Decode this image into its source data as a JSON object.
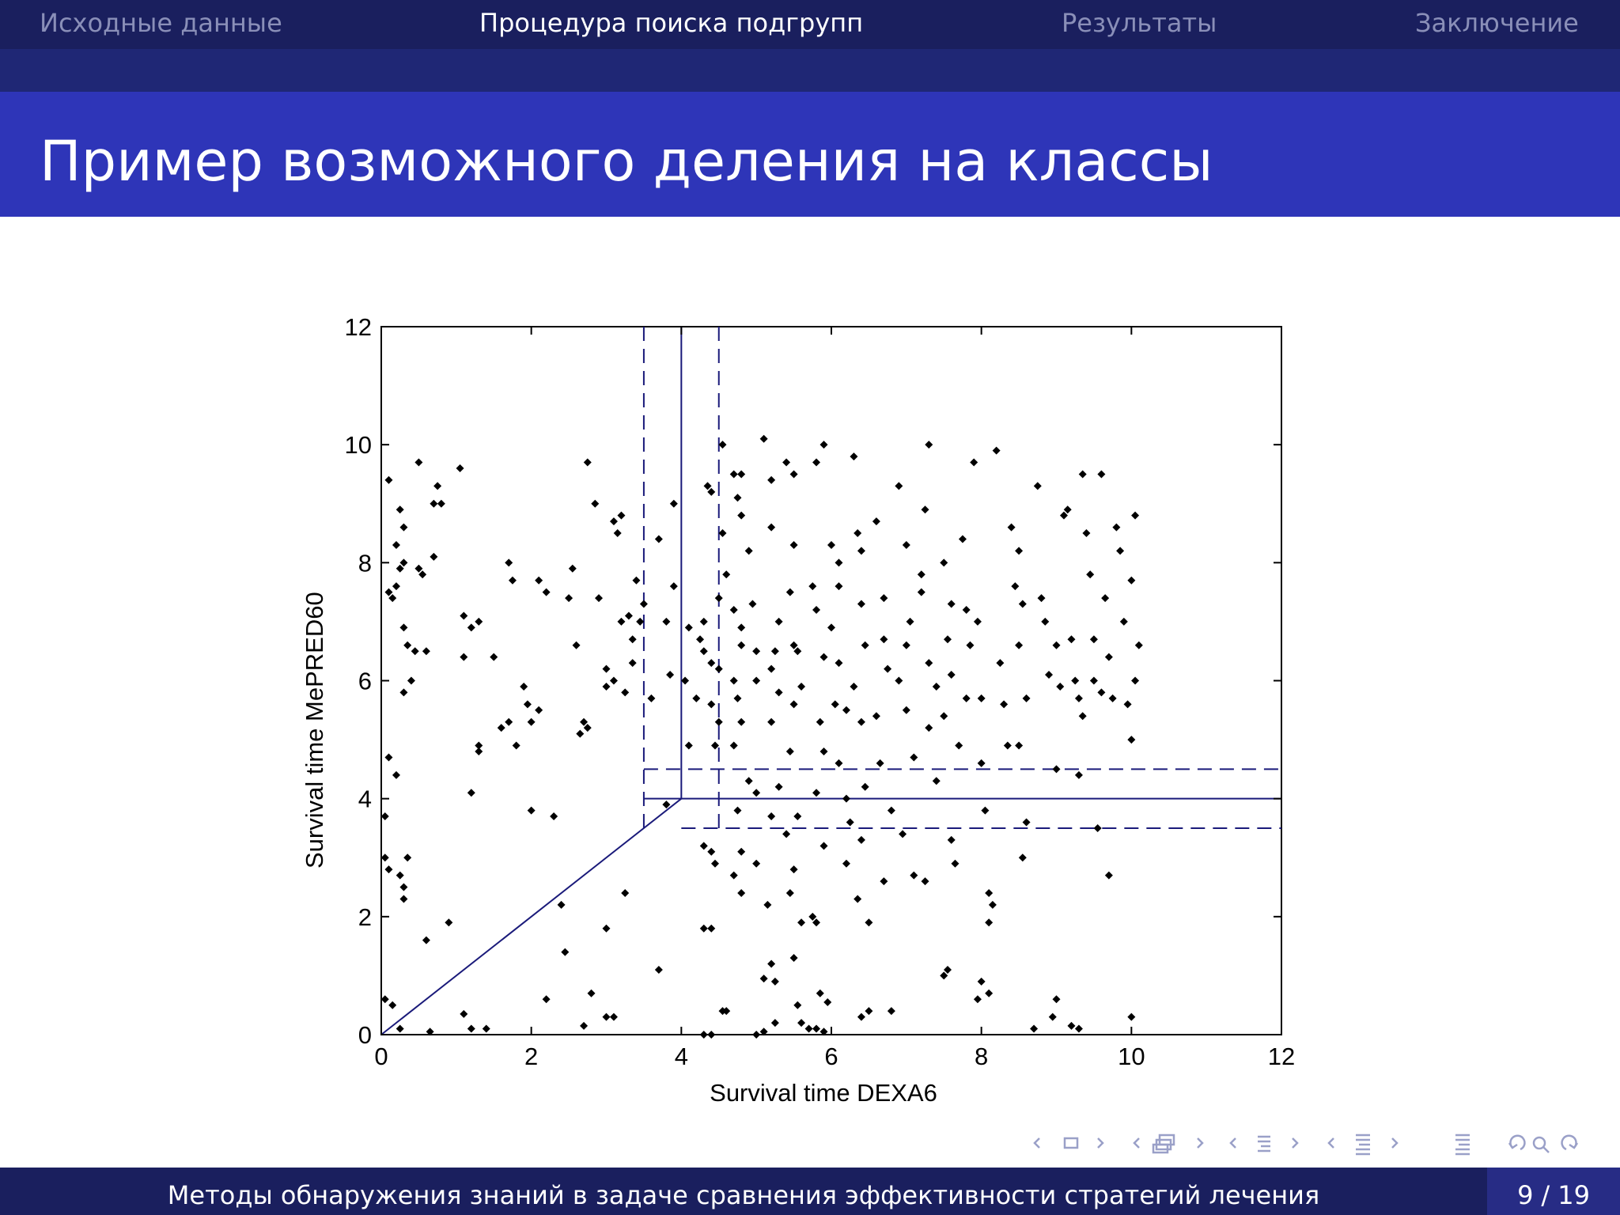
{
  "nav": {
    "items": [
      {
        "label": "Исходные данные"
      },
      {
        "label": "Процедура поиска подгрупп"
      },
      {
        "label": "Результаты"
      },
      {
        "label": "Заключение"
      }
    ],
    "active_index": 1
  },
  "slide": {
    "title": "Пример возможного деления на классы"
  },
  "chart_data": {
    "type": "scatter",
    "xlabel": "Survival time DEXA6",
    "ylabel": "Survival time MePRED60",
    "xlim": [
      0,
      12
    ],
    "ylim": [
      0,
      12
    ],
    "xticks": [
      "0",
      "2",
      "4",
      "6",
      "8",
      "10",
      "12"
    ],
    "yticks": [
      "0",
      "2",
      "4",
      "6",
      "8",
      "10",
      "12"
    ],
    "grid": false,
    "marker_color": "#000000",
    "line_color": "#1a1a7a",
    "reference_lines": [
      {
        "name": "vertical",
        "x": 4,
        "from_y": 4,
        "to_y": 12,
        "style": "solid"
      },
      {
        "name": "vertical-lower-band",
        "x": 3.5,
        "from_y": 3.5,
        "to_y": 12,
        "style": "dashed"
      },
      {
        "name": "vertical-upper-band",
        "x": 4.5,
        "from_y": 3.5,
        "to_y": 12,
        "style": "dashed"
      },
      {
        "name": "horizontal",
        "y": 4,
        "from_x": 4,
        "to_x": 12,
        "style": "solid"
      },
      {
        "name": "horizontal-upper-band",
        "y": 4.5,
        "from_x": 3.5,
        "to_x": 12,
        "style": "dashed"
      },
      {
        "name": "horizontal-lower-band",
        "y": 3.5,
        "from_x": 4,
        "to_x": 12,
        "style": "dashed"
      },
      {
        "name": "horizontal-short",
        "y": 4,
        "from_x": 3.5,
        "to_x": 4,
        "style": "solid"
      },
      {
        "name": "diagonal",
        "from": [
          0,
          0
        ],
        "to": [
          4,
          4
        ],
        "style": "solid"
      }
    ],
    "points": [
      [
        0.1,
        9.4
      ],
      [
        0.2,
        8.3
      ],
      [
        0.1,
        7.5
      ],
      [
        0.2,
        7.6
      ],
      [
        0.15,
        7.4
      ],
      [
        0.25,
        8.9
      ],
      [
        0.3,
        8.6
      ],
      [
        0.3,
        8.0
      ],
      [
        0.25,
        7.9
      ],
      [
        0.3,
        6.9
      ],
      [
        0.35,
        6.6
      ],
      [
        0.4,
        6.0
      ],
      [
        0.3,
        5.8
      ],
      [
        0.45,
        6.5
      ],
      [
        0.5,
        7.9
      ],
      [
        0.55,
        7.8
      ],
      [
        0.6,
        6.5
      ],
      [
        0.7,
        8.1
      ],
      [
        0.7,
        9.0
      ],
      [
        0.8,
        9.0
      ],
      [
        0.75,
        9.3
      ],
      [
        0.5,
        9.7
      ],
      [
        0.1,
        4.7
      ],
      [
        0.2,
        4.4
      ],
      [
        0.05,
        3.7
      ],
      [
        0.05,
        3.0
      ],
      [
        0.1,
        2.8
      ],
      [
        0.25,
        2.7
      ],
      [
        0.3,
        2.5
      ],
      [
        0.3,
        2.3
      ],
      [
        0.35,
        3.0
      ],
      [
        0.05,
        0.6
      ],
      [
        0.15,
        0.5
      ],
      [
        0.25,
        0.1
      ],
      [
        0.6,
        1.6
      ],
      [
        0.9,
        1.9
      ],
      [
        0.65,
        0.05
      ],
      [
        1.05,
        9.6
      ],
      [
        1.1,
        7.1
      ],
      [
        1.2,
        6.9
      ],
      [
        1.3,
        7.0
      ],
      [
        1.1,
        6.4
      ],
      [
        1.3,
        4.9
      ],
      [
        1.3,
        4.8
      ],
      [
        1.2,
        4.1
      ],
      [
        1.5,
        6.4
      ],
      [
        1.7,
        5.3
      ],
      [
        1.6,
        5.2
      ],
      [
        1.8,
        4.9
      ],
      [
        1.75,
        7.7
      ],
      [
        1.7,
        8.0
      ],
      [
        1.9,
        5.9
      ],
      [
        1.95,
        5.6
      ],
      [
        2.1,
        5.5
      ],
      [
        2.0,
        5.3
      ],
      [
        2.0,
        3.8
      ],
      [
        2.1,
        7.7
      ],
      [
        2.2,
        7.5
      ],
      [
        2.3,
        3.7
      ],
      [
        2.4,
        2.2
      ],
      [
        2.45,
        1.4
      ],
      [
        2.5,
        7.4
      ],
      [
        2.55,
        7.9
      ],
      [
        2.6,
        6.6
      ],
      [
        2.65,
        5.1
      ],
      [
        2.7,
        5.3
      ],
      [
        2.75,
        5.2
      ],
      [
        2.75,
        9.7
      ],
      [
        2.85,
        9.0
      ],
      [
        2.9,
        7.4
      ],
      [
        2.8,
        0.7
      ],
      [
        3.0,
        1.8
      ],
      [
        2.2,
        0.6
      ],
      [
        1.1,
        0.35
      ],
      [
        1.2,
        0.1
      ],
      [
        1.4,
        0.1
      ],
      [
        3.0,
        6.2
      ],
      [
        3.0,
        5.9
      ],
      [
        3.1,
        8.7
      ],
      [
        3.15,
        8.5
      ],
      [
        3.2,
        8.8
      ],
      [
        3.2,
        7.0
      ],
      [
        3.3,
        7.1
      ],
      [
        3.35,
        6.7
      ],
      [
        3.1,
        6.0
      ],
      [
        3.25,
        5.8
      ],
      [
        3.25,
        2.4
      ],
      [
        3.4,
        7.7
      ],
      [
        3.35,
        6.3
      ],
      [
        3.5,
        7.3
      ],
      [
        3.45,
        7.0
      ],
      [
        3.6,
        5.7
      ],
      [
        3.7,
        8.4
      ],
      [
        3.8,
        7.0
      ],
      [
        3.9,
        9.0
      ],
      [
        3.9,
        7.6
      ],
      [
        3.85,
        6.1
      ],
      [
        3.7,
        1.1
      ],
      [
        3.8,
        3.9
      ],
      [
        3.0,
        0.3
      ],
      [
        3.1,
        0.3
      ],
      [
        2.7,
        0.15
      ],
      [
        4.05,
        6.0
      ],
      [
        4.1,
        6.9
      ],
      [
        4.1,
        4.9
      ],
      [
        4.2,
        5.7
      ],
      [
        4.25,
        6.7
      ],
      [
        4.3,
        6.5
      ],
      [
        4.3,
        7.0
      ],
      [
        4.35,
        9.3
      ],
      [
        4.4,
        9.2
      ],
      [
        4.4,
        6.3
      ],
      [
        4.5,
        6.2
      ],
      [
        4.5,
        5.3
      ],
      [
        4.45,
        4.9
      ],
      [
        4.55,
        8.5
      ],
      [
        4.55,
        10.0
      ],
      [
        4.6,
        7.8
      ],
      [
        4.5,
        7.4
      ],
      [
        4.4,
        5.6
      ],
      [
        4.3,
        3.2
      ],
      [
        4.4,
        3.1
      ],
      [
        4.45,
        2.9
      ],
      [
        4.4,
        1.8
      ],
      [
        4.3,
        1.8
      ],
      [
        4.4,
        0.0
      ],
      [
        4.3,
        0.0
      ],
      [
        4.55,
        0.4
      ],
      [
        4.6,
        0.4
      ],
      [
        4.7,
        9.5
      ],
      [
        4.8,
        9.5
      ],
      [
        4.75,
        9.1
      ],
      [
        4.8,
        8.8
      ],
      [
        4.7,
        7.2
      ],
      [
        4.8,
        6.9
      ],
      [
        4.8,
        6.6
      ],
      [
        4.7,
        6.0
      ],
      [
        4.75,
        5.7
      ],
      [
        4.8,
        5.3
      ],
      [
        4.7,
        4.9
      ],
      [
        4.75,
        3.8
      ],
      [
        4.8,
        3.1
      ],
      [
        4.7,
        2.7
      ],
      [
        4.8,
        2.4
      ],
      [
        4.9,
        8.2
      ],
      [
        4.95,
        7.3
      ],
      [
        5.0,
        6.5
      ],
      [
        5.0,
        6.0
      ],
      [
        4.9,
        4.3
      ],
      [
        5.0,
        4.1
      ],
      [
        5.0,
        2.9
      ],
      [
        5.1,
        10.1
      ],
      [
        5.2,
        9.4
      ],
      [
        5.2,
        8.6
      ],
      [
        5.3,
        7.0
      ],
      [
        5.25,
        6.5
      ],
      [
        5.2,
        6.2
      ],
      [
        5.3,
        5.8
      ],
      [
        5.2,
        5.3
      ],
      [
        5.3,
        4.2
      ],
      [
        5.2,
        3.7
      ],
      [
        5.15,
        2.2
      ],
      [
        5.2,
        1.2
      ],
      [
        5.25,
        0.9
      ],
      [
        5.1,
        0.95
      ],
      [
        5.0,
        0.0
      ],
      [
        5.1,
        0.05
      ],
      [
        5.25,
        0.2
      ],
      [
        5.4,
        9.7
      ],
      [
        5.5,
        9.5
      ],
      [
        5.5,
        8.3
      ],
      [
        5.45,
        7.5
      ],
      [
        5.5,
        6.6
      ],
      [
        5.55,
        6.5
      ],
      [
        5.6,
        5.9
      ],
      [
        5.5,
        5.6
      ],
      [
        5.45,
        4.8
      ],
      [
        5.55,
        3.7
      ],
      [
        5.4,
        3.4
      ],
      [
        5.5,
        2.8
      ],
      [
        5.45,
        2.4
      ],
      [
        5.6,
        1.9
      ],
      [
        5.5,
        1.3
      ],
      [
        5.55,
        0.5
      ],
      [
        5.6,
        0.2
      ],
      [
        5.8,
        9.7
      ],
      [
        5.9,
        10.0
      ],
      [
        5.75,
        7.6
      ],
      [
        5.8,
        7.2
      ],
      [
        5.9,
        6.4
      ],
      [
        5.85,
        5.3
      ],
      [
        5.9,
        4.8
      ],
      [
        5.8,
        4.1
      ],
      [
        5.9,
        3.2
      ],
      [
        5.75,
        2.0
      ],
      [
        5.8,
        1.9
      ],
      [
        5.85,
        0.7
      ],
      [
        5.95,
        0.55
      ],
      [
        5.7,
        0.1
      ],
      [
        5.8,
        0.1
      ],
      [
        5.9,
        0.05
      ],
      [
        6.0,
        8.3
      ],
      [
        6.1,
        8.0
      ],
      [
        6.1,
        7.6
      ],
      [
        6.0,
        6.9
      ],
      [
        6.1,
        6.3
      ],
      [
        6.05,
        5.6
      ],
      [
        6.2,
        5.5
      ],
      [
        6.1,
        4.6
      ],
      [
        6.2,
        4.0
      ],
      [
        6.25,
        3.6
      ],
      [
        6.2,
        2.9
      ],
      [
        6.3,
        9.8
      ],
      [
        6.35,
        8.5
      ],
      [
        6.4,
        8.2
      ],
      [
        6.4,
        7.3
      ],
      [
        6.45,
        6.6
      ],
      [
        6.3,
        5.9
      ],
      [
        6.4,
        5.3
      ],
      [
        6.45,
        4.2
      ],
      [
        6.4,
        3.3
      ],
      [
        6.35,
        2.3
      ],
      [
        6.5,
        1.9
      ],
      [
        6.4,
        0.3
      ],
      [
        6.5,
        0.4
      ],
      [
        6.6,
        8.7
      ],
      [
        6.7,
        7.4
      ],
      [
        6.7,
        6.7
      ],
      [
        6.75,
        6.2
      ],
      [
        6.6,
        5.4
      ],
      [
        6.65,
        4.6
      ],
      [
        6.8,
        3.8
      ],
      [
        6.7,
        2.6
      ],
      [
        6.8,
        0.4
      ],
      [
        6.9,
        9.3
      ],
      [
        7.0,
        8.3
      ],
      [
        7.05,
        7.0
      ],
      [
        7.0,
        6.6
      ],
      [
        6.9,
        6.0
      ],
      [
        7.0,
        5.5
      ],
      [
        7.1,
        4.7
      ],
      [
        6.95,
        3.4
      ],
      [
        7.1,
        2.7
      ],
      [
        7.2,
        7.8
      ],
      [
        7.3,
        10.0
      ],
      [
        7.25,
        8.9
      ],
      [
        7.2,
        7.5
      ],
      [
        7.3,
        6.3
      ],
      [
        7.4,
        5.9
      ],
      [
        7.3,
        5.2
      ],
      [
        7.4,
        4.3
      ],
      [
        7.25,
        2.6
      ],
      [
        7.5,
        8.0
      ],
      [
        7.6,
        7.3
      ],
      [
        7.55,
        6.7
      ],
      [
        7.6,
        6.1
      ],
      [
        7.5,
        5.4
      ],
      [
        7.7,
        4.9
      ],
      [
        7.6,
        3.3
      ],
      [
        7.65,
        2.9
      ],
      [
        7.5,
        1.0
      ],
      [
        7.55,
        1.1
      ],
      [
        7.75,
        8.4
      ],
      [
        7.8,
        7.2
      ],
      [
        7.85,
        6.6
      ],
      [
        7.8,
        5.7
      ],
      [
        7.9,
        9.7
      ],
      [
        7.95,
        7.0
      ],
      [
        8.0,
        5.7
      ],
      [
        8.0,
        4.6
      ],
      [
        8.05,
        3.8
      ],
      [
        8.1,
        2.4
      ],
      [
        8.15,
        2.2
      ],
      [
        8.1,
        1.9
      ],
      [
        8.0,
        0.9
      ],
      [
        7.95,
        0.6
      ],
      [
        8.1,
        0.7
      ],
      [
        8.2,
        9.9
      ],
      [
        8.25,
        6.3
      ],
      [
        8.3,
        5.6
      ],
      [
        8.35,
        4.9
      ],
      [
        8.4,
        8.6
      ],
      [
        8.5,
        8.2
      ],
      [
        8.45,
        7.6
      ],
      [
        8.55,
        7.3
      ],
      [
        8.5,
        6.6
      ],
      [
        8.6,
        5.7
      ],
      [
        8.5,
        4.9
      ],
      [
        8.55,
        3.0
      ],
      [
        8.6,
        3.6
      ],
      [
        8.75,
        9.3
      ],
      [
        8.8,
        7.4
      ],
      [
        8.85,
        7.0
      ],
      [
        8.9,
        6.1
      ],
      [
        9.0,
        6.6
      ],
      [
        9.05,
        5.9
      ],
      [
        9.0,
        4.5
      ],
      [
        9.1,
        8.8
      ],
      [
        9.15,
        8.9
      ],
      [
        9.2,
        6.7
      ],
      [
        9.25,
        6.0
      ],
      [
        9.3,
        5.7
      ],
      [
        9.35,
        5.4
      ],
      [
        9.3,
        4.4
      ],
      [
        9.35,
        9.5
      ],
      [
        9.4,
        8.5
      ],
      [
        9.45,
        7.8
      ],
      [
        9.5,
        6.7
      ],
      [
        9.5,
        6.0
      ],
      [
        9.6,
        5.8
      ],
      [
        9.55,
        3.5
      ],
      [
        9.6,
        9.5
      ],
      [
        9.65,
        7.4
      ],
      [
        9.7,
        6.4
      ],
      [
        9.75,
        5.7
      ],
      [
        9.8,
        8.6
      ],
      [
        9.85,
        8.2
      ],
      [
        9.9,
        7.0
      ],
      [
        9.95,
        5.6
      ],
      [
        10.0,
        5.0
      ],
      [
        10.05,
        8.8
      ],
      [
        10.0,
        7.7
      ],
      [
        10.1,
        6.6
      ],
      [
        10.05,
        6.0
      ],
      [
        9.7,
        2.7
      ],
      [
        10.0,
        0.3
      ],
      [
        9.3,
        0.1
      ],
      [
        9.2,
        0.15
      ],
      [
        9.0,
        0.6
      ],
      [
        8.7,
        0.1
      ],
      [
        8.95,
        0.3
      ]
    ]
  },
  "beamer_nav": {
    "icons": [
      "nav-prev-frame-icon",
      "nav-frame-icon",
      "nav-next-frame-icon",
      "nav-prev-subsection-icon",
      "nav-subsection-icon",
      "nav-next-subsection-icon",
      "nav-prev-section-icon",
      "nav-section-icon",
      "nav-next-section-icon",
      "nav-prev-toc-icon",
      "nav-toc-icon",
      "nav-next-toc-icon",
      "nav-align-icon",
      "nav-back-icon",
      "nav-search-icon",
      "nav-forward-icon"
    ]
  },
  "footer": {
    "title": "Методы обнаружения знаний в задаче сравнения эффективности стратегий лечения",
    "page_current": "9",
    "page_separator": "/",
    "page_total": "19"
  }
}
